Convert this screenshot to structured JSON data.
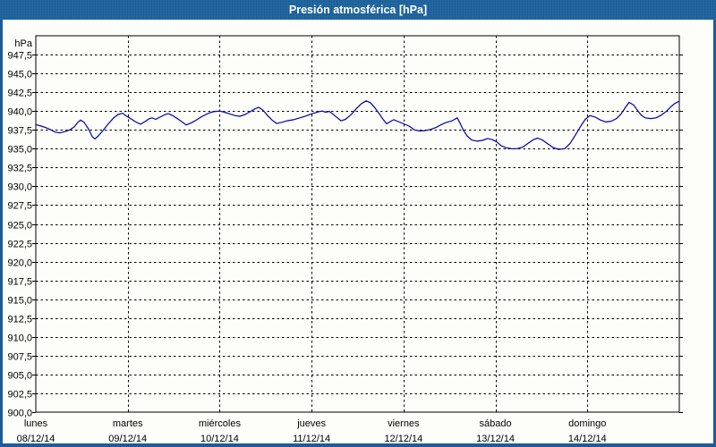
{
  "window": {
    "title": "Presión atmosférica [hPa]"
  },
  "colors": {
    "title_bar": "#2268a3",
    "window_frame": "#1d5c98",
    "plot_background": "#fdfdf9",
    "grid": "#000000",
    "series_line": "#0000aa",
    "label_text": "#000000",
    "title_text": "#ffffff"
  },
  "chart_data": {
    "type": "line",
    "title": "Presión atmosférica [hPa]",
    "ylabel": "hPa",
    "ylim": [
      900,
      950
    ],
    "ytick_step": 2.5,
    "ytick_labels": [
      "947,5",
      "945,0",
      "942,5",
      "940,0",
      "937,5",
      "935,0",
      "932,5",
      "930,0",
      "927,5",
      "925,0",
      "922,5",
      "920,0",
      "917,5",
      "915,0",
      "912,5",
      "910,0",
      "907,5",
      "905,0",
      "902,5",
      "900,0"
    ],
    "grid": "dashed",
    "legend_position": "none",
    "x_axis": {
      "unit": "day",
      "days": [
        {
          "name": "lunes",
          "date": "08/12/14"
        },
        {
          "name": "martes",
          "date": "09/12/14"
        },
        {
          "name": "miércoles",
          "date": "10/12/14"
        },
        {
          "name": "jueves",
          "date": "11/12/14"
        },
        {
          "name": "viernes",
          "date": "12/12/14"
        },
        {
          "name": "sábado",
          "date": "13/12/14"
        },
        {
          "name": "domingo",
          "date": "14/12/14"
        }
      ]
    },
    "series": [
      {
        "name": "Presión atmosférica",
        "unit": "hPa",
        "points": [
          [
            0.0,
            938.2
          ],
          [
            0.058,
            938.0
          ],
          [
            0.107,
            937.8
          ],
          [
            0.166,
            937.5
          ],
          [
            0.214,
            937.2
          ],
          [
            0.263,
            937.1
          ],
          [
            0.312,
            937.25
          ],
          [
            0.37,
            937.5
          ],
          [
            0.419,
            937.9
          ],
          [
            0.458,
            938.5
          ],
          [
            0.487,
            938.8
          ],
          [
            0.526,
            938.5
          ],
          [
            0.574,
            937.6
          ],
          [
            0.613,
            936.6
          ],
          [
            0.643,
            936.3
          ],
          [
            0.681,
            936.7
          ],
          [
            0.73,
            937.4
          ],
          [
            0.789,
            938.3
          ],
          [
            0.847,
            939.1
          ],
          [
            0.896,
            939.55
          ],
          [
            0.944,
            939.7
          ],
          [
            0.983,
            939.35
          ],
          [
            1.032,
            939.0
          ],
          [
            1.081,
            938.6
          ],
          [
            1.139,
            938.25
          ],
          [
            1.188,
            938.6
          ],
          [
            1.236,
            939.0
          ],
          [
            1.266,
            939.1
          ],
          [
            1.305,
            938.9
          ],
          [
            1.353,
            939.2
          ],
          [
            1.402,
            939.5
          ],
          [
            1.441,
            939.65
          ],
          [
            1.49,
            939.4
          ],
          [
            1.538,
            939.0
          ],
          [
            1.587,
            938.6
          ],
          [
            1.636,
            938.15
          ],
          [
            1.694,
            938.45
          ],
          [
            1.752,
            938.85
          ],
          [
            1.811,
            939.3
          ],
          [
            1.869,
            939.65
          ],
          [
            1.928,
            939.9
          ],
          [
            1.996,
            940.0
          ],
          [
            2.054,
            939.85
          ],
          [
            2.113,
            939.6
          ],
          [
            2.171,
            939.4
          ],
          [
            2.22,
            939.3
          ],
          [
            2.278,
            939.55
          ],
          [
            2.337,
            939.95
          ],
          [
            2.385,
            940.3
          ],
          [
            2.424,
            940.5
          ],
          [
            2.473,
            940.1
          ],
          [
            2.522,
            939.4
          ],
          [
            2.57,
            938.8
          ],
          [
            2.619,
            938.35
          ],
          [
            2.677,
            938.5
          ],
          [
            2.736,
            938.7
          ],
          [
            2.804,
            938.85
          ],
          [
            2.872,
            939.1
          ],
          [
            2.94,
            939.35
          ],
          [
            3.008,
            939.65
          ],
          [
            3.076,
            939.9
          ],
          [
            3.115,
            940.0
          ],
          [
            3.154,
            939.85
          ],
          [
            3.193,
            939.95
          ],
          [
            3.232,
            939.6
          ],
          [
            3.281,
            939.1
          ],
          [
            3.32,
            938.7
          ],
          [
            3.369,
            938.9
          ],
          [
            3.427,
            939.5
          ],
          [
            3.485,
            940.3
          ],
          [
            3.544,
            941.0
          ],
          [
            3.593,
            941.35
          ],
          [
            3.641,
            941.1
          ],
          [
            3.69,
            940.4
          ],
          [
            3.739,
            939.6
          ],
          [
            3.777,
            938.9
          ],
          [
            3.816,
            938.3
          ],
          [
            3.855,
            938.6
          ],
          [
            3.894,
            938.85
          ],
          [
            3.943,
            938.6
          ],
          [
            4.001,
            938.3
          ],
          [
            4.06,
            938.0
          ],
          [
            4.118,
            937.5
          ],
          [
            4.177,
            937.35
          ],
          [
            4.235,
            937.4
          ],
          [
            4.293,
            937.55
          ],
          [
            4.352,
            937.8
          ],
          [
            4.41,
            938.2
          ],
          [
            4.468,
            938.5
          ],
          [
            4.517,
            938.65
          ],
          [
            4.556,
            938.9
          ],
          [
            4.585,
            939.1
          ],
          [
            4.615,
            938.4
          ],
          [
            4.654,
            937.4
          ],
          [
            4.692,
            936.7
          ],
          [
            4.741,
            936.15
          ],
          [
            4.8,
            936.0
          ],
          [
            4.858,
            936.1
          ],
          [
            4.916,
            936.35
          ],
          [
            4.965,
            936.2
          ],
          [
            5.014,
            935.9
          ],
          [
            5.062,
            935.4
          ],
          [
            5.121,
            935.1
          ],
          [
            5.179,
            935.0
          ],
          [
            5.237,
            935.0
          ],
          [
            5.296,
            935.2
          ],
          [
            5.354,
            935.7
          ],
          [
            5.413,
            936.2
          ],
          [
            5.461,
            936.4
          ],
          [
            5.51,
            936.15
          ],
          [
            5.568,
            935.65
          ],
          [
            5.627,
            935.15
          ],
          [
            5.685,
            934.9
          ],
          [
            5.753,
            935.0
          ],
          [
            5.812,
            935.7
          ],
          [
            5.87,
            936.8
          ],
          [
            5.928,
            938.0
          ],
          [
            5.977,
            938.9
          ],
          [
            6.026,
            939.4
          ],
          [
            6.084,
            939.2
          ],
          [
            6.143,
            938.8
          ],
          [
            6.201,
            938.55
          ],
          [
            6.259,
            938.65
          ],
          [
            6.318,
            939.0
          ],
          [
            6.366,
            939.6
          ],
          [
            6.415,
            940.5
          ],
          [
            6.454,
            941.15
          ],
          [
            6.503,
            940.8
          ],
          [
            6.551,
            940.0
          ],
          [
            6.59,
            939.4
          ],
          [
            6.629,
            939.1
          ],
          [
            6.688,
            939.0
          ],
          [
            6.746,
            939.1
          ],
          [
            6.804,
            939.45
          ],
          [
            6.863,
            940.0
          ],
          [
            6.911,
            940.6
          ],
          [
            6.95,
            941.0
          ],
          [
            6.989,
            941.25
          ]
        ]
      }
    ]
  }
}
